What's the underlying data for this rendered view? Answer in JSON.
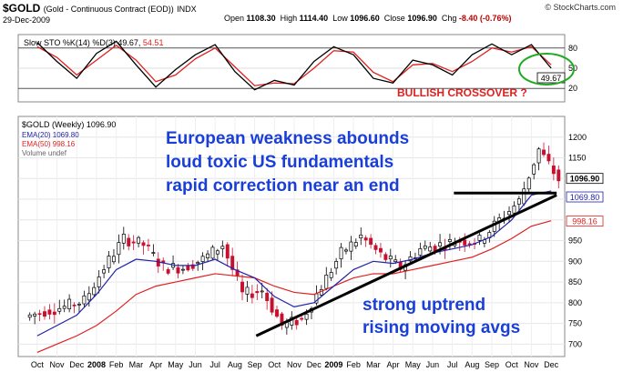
{
  "header": {
    "symbol": "$GOLD",
    "symbol_desc": "(Gold - Continuous Contract (EOD))",
    "exchange": "INDX",
    "date": "29-Dec-2009",
    "open_label": "Open",
    "open": "1108.30",
    "high_label": "High",
    "high": "1114.40",
    "low_label": "Low",
    "low": "1096.60",
    "close_label": "Close",
    "close": "1096.90",
    "chg_label": "Chg",
    "chg": "-8.40 (-0.76%)",
    "credit": "© StockCharts.com"
  },
  "colors": {
    "ema20": "#2222aa",
    "ema50": "#e02020",
    "sto_k": "#000000",
    "sto_d": "#e02020",
    "annotation_blue": "#1a3fd8",
    "annotation_red": "#e02020",
    "circle_green": "#22aa22",
    "candle_down": "#c8102e"
  },
  "chart_data": [
    {
      "type": "line",
      "panel": "Slow Stochastic",
      "legend": "Slow STO %K(14) %D(3)",
      "k_value": "49.67,",
      "d_value": "54.51",
      "ylim": [
        0,
        100
      ],
      "y_ticks": [
        "80",
        "50",
        "20"
      ],
      "reference_lines": [
        80,
        20
      ],
      "last_value_label": "49.67",
      "x": [
        "2007-10",
        "2007-11",
        "2007-12",
        "2008-01",
        "2008-02",
        "2008-03",
        "2008-04",
        "2008-05",
        "2008-06",
        "2008-07",
        "2008-08",
        "2008-09",
        "2008-10",
        "2008-11",
        "2008-12",
        "2009-01",
        "2009-02",
        "2009-03",
        "2009-04",
        "2009-05",
        "2009-06",
        "2009-07",
        "2009-08",
        "2009-09",
        "2009-10",
        "2009-11",
        "2009-12"
      ],
      "series": [
        {
          "name": "%K(14)",
          "values": [
            88,
            60,
            35,
            72,
            90,
            55,
            22,
            48,
            70,
            85,
            45,
            18,
            32,
            25,
            60,
            82,
            70,
            35,
            28,
            62,
            55,
            40,
            70,
            86,
            70,
            85,
            50
          ]
        },
        {
          "name": "%D(3)",
          "values": [
            82,
            66,
            40,
            62,
            84,
            62,
            30,
            40,
            64,
            80,
            52,
            24,
            28,
            27,
            50,
            76,
            74,
            44,
            30,
            55,
            57,
            45,
            60,
            80,
            74,
            82,
            55
          ]
        }
      ],
      "annotation": "BULLISH CROSSOVER ?"
    },
    {
      "type": "candlestick",
      "panel": "Price (Weekly)",
      "legend": "$GOLD (Weekly) 1096.90",
      "legend_items": [
        {
          "label": "EMA(20) 1069.80",
          "color": "#2222aa"
        },
        {
          "label": "EMA(50) 998.16",
          "color": "#e02020"
        },
        {
          "label": "Volume undef",
          "color": "#666666"
        }
      ],
      "ylim": [
        670,
        1250
      ],
      "y_ticks": [
        "1200",
        "1150",
        "1100",
        "1050",
        "1000",
        "950",
        "900",
        "850",
        "800",
        "750",
        "700"
      ],
      "price_labels": [
        "1096.90",
        "1069.80",
        "998.16"
      ],
      "x_tick_labels": [
        "Oct",
        "Nov",
        "Dec",
        "2008",
        "Feb",
        "Mar",
        "Apr",
        "May",
        "Jun",
        "Jul",
        "Aug",
        "Sep",
        "Oct",
        "Nov",
        "Dec",
        "2009",
        "Feb",
        "Mar",
        "Apr",
        "May",
        "Jun",
        "Jul",
        "Aug",
        "Sep",
        "Oct",
        "Nov",
        "Dec"
      ],
      "x": [
        "2007-10",
        "2007-11",
        "2007-12",
        "2008-01",
        "2008-02",
        "2008-03",
        "2008-04",
        "2008-05",
        "2008-06",
        "2008-07",
        "2008-08",
        "2008-09",
        "2008-10",
        "2008-11",
        "2008-12",
        "2009-01",
        "2009-02",
        "2009-03",
        "2009-04",
        "2009-05",
        "2009-06",
        "2009-07",
        "2009-08",
        "2009-09",
        "2009-10",
        "2009-11",
        "2009-12"
      ],
      "close": [
        780,
        790,
        805,
        885,
        955,
        940,
        885,
        885,
        905,
        940,
        820,
        830,
        745,
        760,
        840,
        920,
        960,
        915,
        885,
        930,
        940,
        950,
        950,
        1000,
        1045,
        1170,
        1097
      ],
      "ema20": [
        720,
        745,
        770,
        820,
        880,
        905,
        900,
        890,
        890,
        905,
        880,
        860,
        815,
        790,
        800,
        840,
        880,
        900,
        895,
        905,
        920,
        930,
        940,
        960,
        1000,
        1060,
        1070
      ],
      "ema50": [
        680,
        700,
        720,
        745,
        780,
        820,
        840,
        850,
        860,
        870,
        865,
        860,
        840,
        825,
        820,
        840,
        860,
        870,
        870,
        880,
        890,
        900,
        910,
        930,
        955,
        985,
        998
      ],
      "trendlines": [
        {
          "from": [
            "2008-10",
            720
          ],
          "to": [
            "2009-12",
            1060
          ]
        },
        {
          "from": [
            "2009-08",
            1065
          ],
          "to": [
            "2009-12",
            1065
          ]
        }
      ],
      "annotations": [
        "European weakness abounds",
        "loud toxic US fundamentals",
        "rapid correction near an end",
        "strong uptrend",
        "rising moving avgs"
      ]
    }
  ]
}
